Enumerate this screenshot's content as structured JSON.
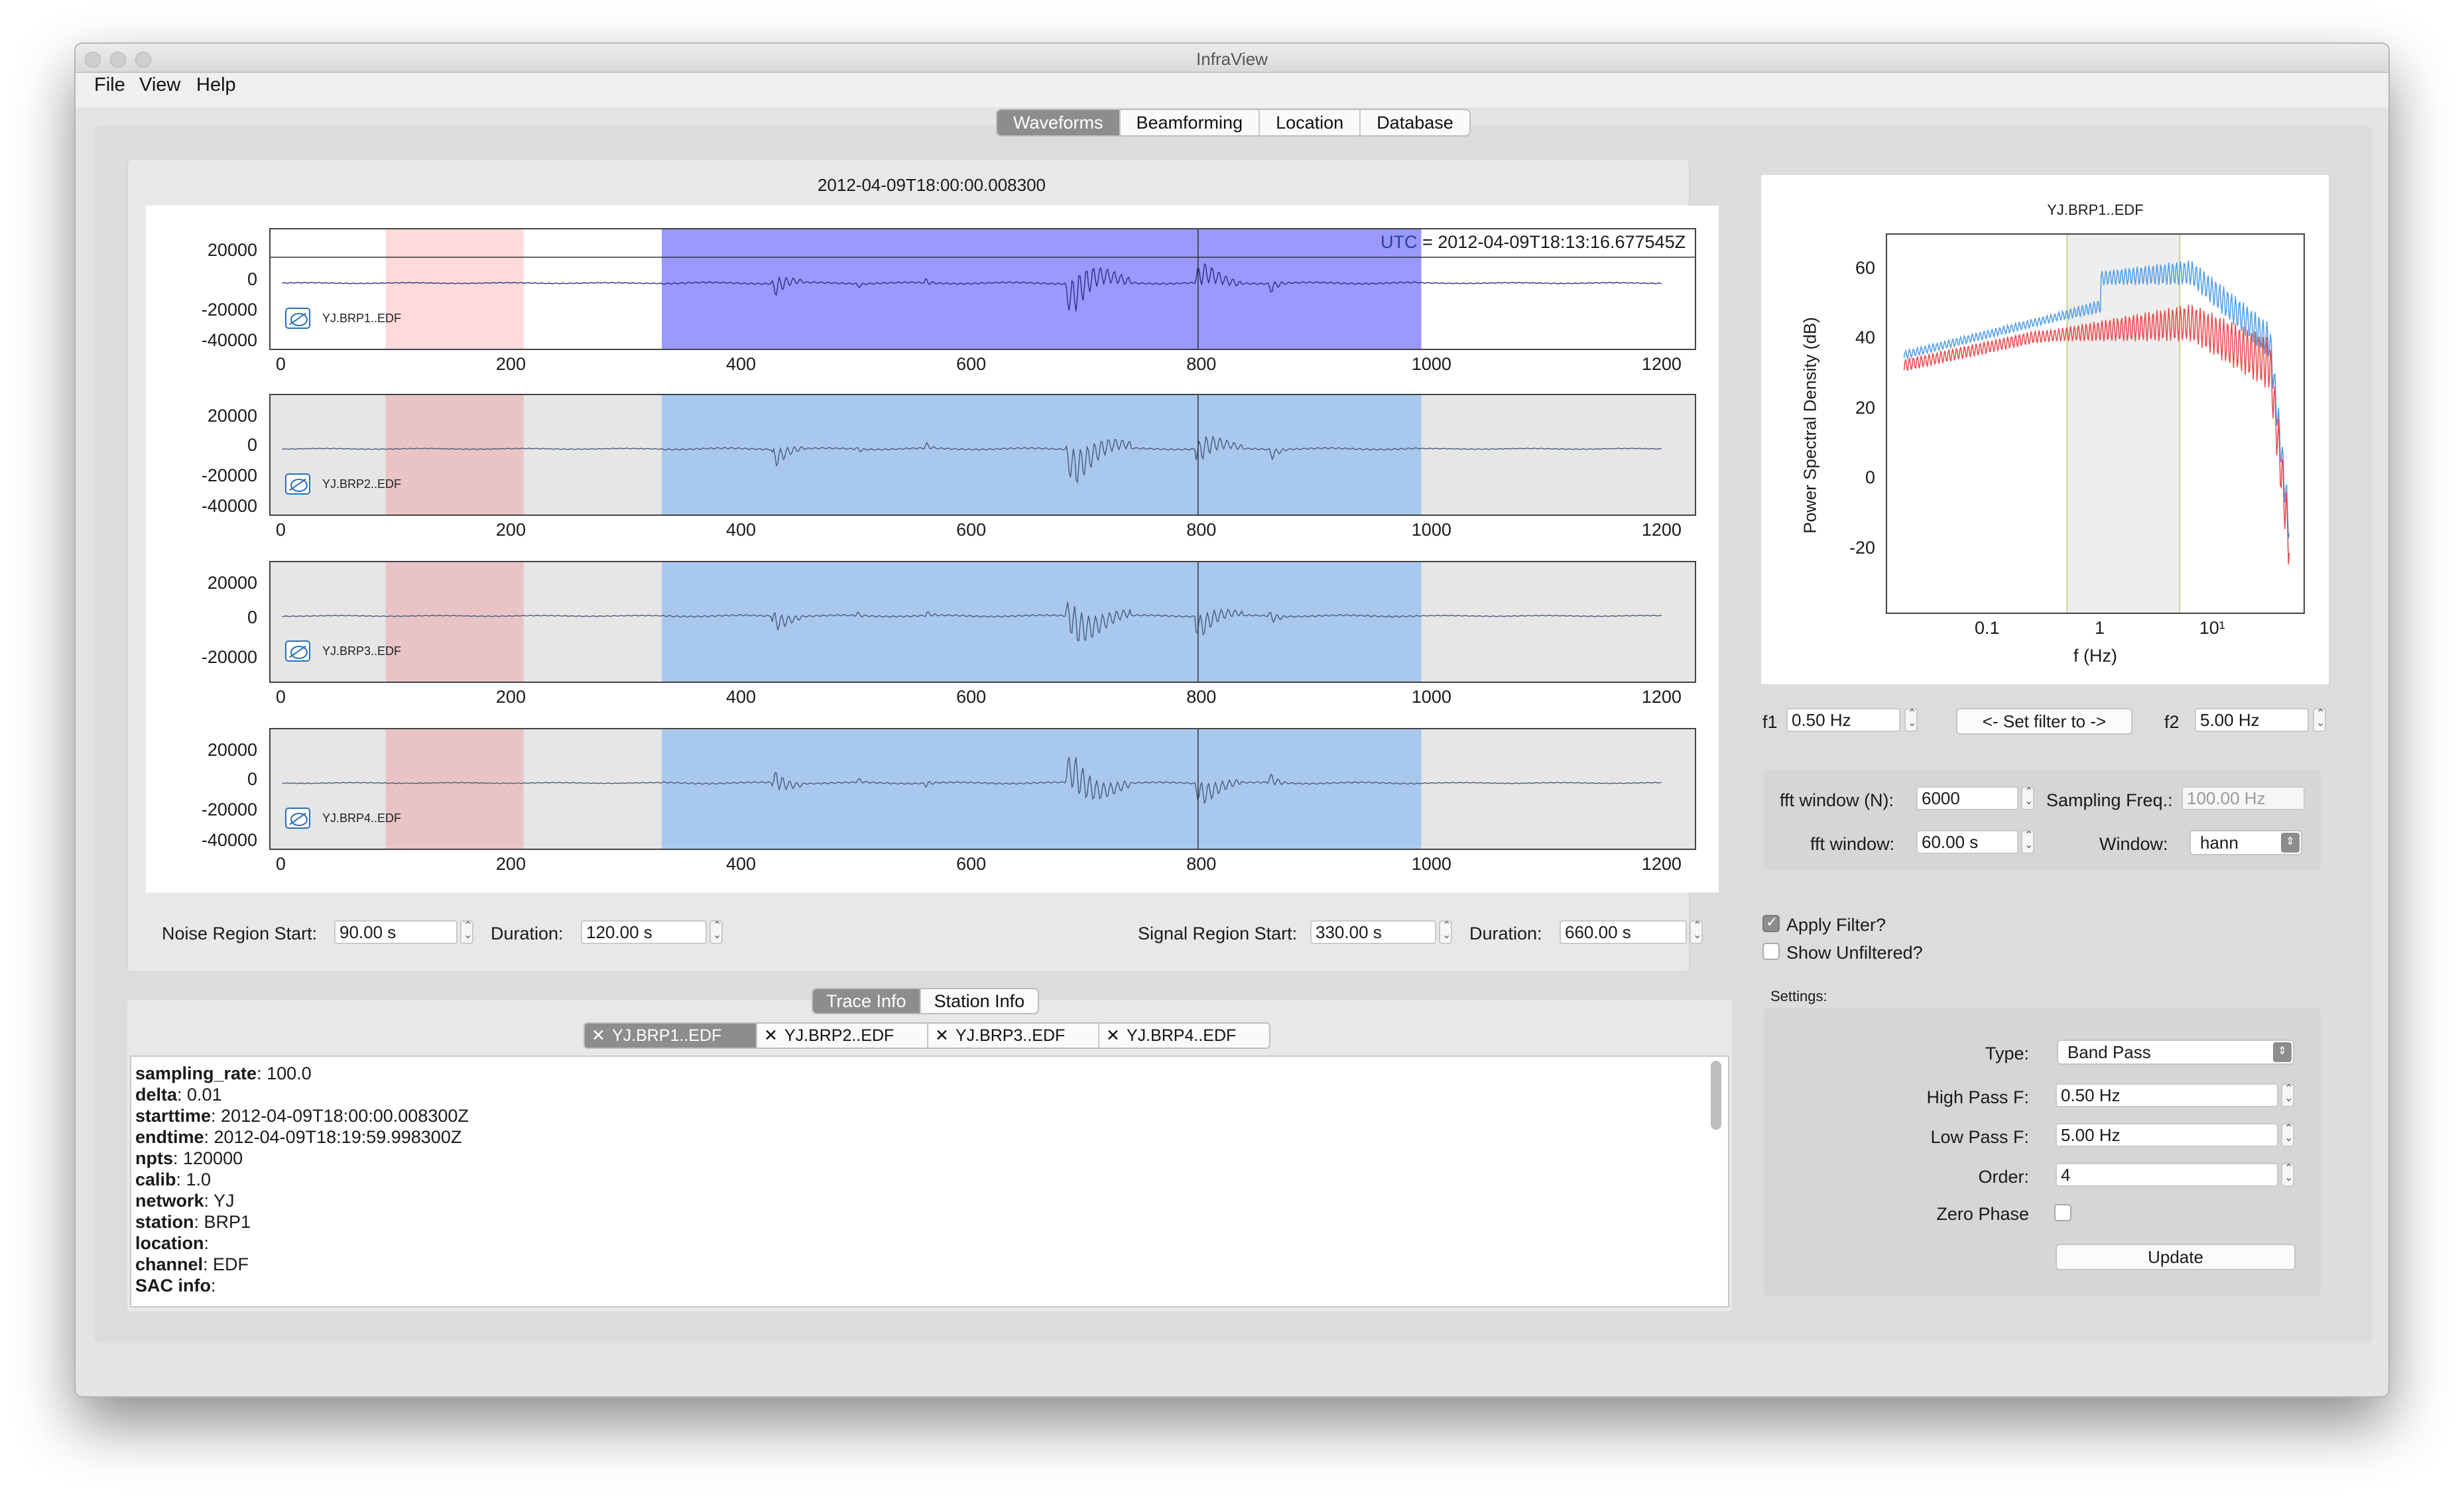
{
  "window": {
    "title": "InfraView"
  },
  "menu": {
    "file": "File",
    "view": "View",
    "help": "Help"
  },
  "main_tabs": [
    "Waveforms",
    "Beamforming",
    "Location",
    "Database"
  ],
  "waveform": {
    "title": "2012-04-09T18:00:00.008300",
    "utc_prefix": "UTC",
    "utc_value": "= 2012-04-09T18:13:16.677545Z",
    "x_ticks": [
      "0",
      "200",
      "400",
      "600",
      "800",
      "1000",
      "1200"
    ],
    "x_range": [
      -10,
      1230
    ],
    "noise_region": [
      90,
      210
    ],
    "signal_region": [
      330,
      990
    ],
    "cursor_time": 796,
    "traces": [
      {
        "label": "YJ.BRP1..EDF",
        "y_ticks": [
          "20000",
          "0",
          "-20000",
          "-40000"
        ]
      },
      {
        "label": "YJ.BRP2..EDF",
        "y_ticks": [
          "20000",
          "0",
          "-20000",
          "-40000"
        ]
      },
      {
        "label": "YJ.BRP3..EDF",
        "y_ticks": [
          "20000",
          "0",
          "-20000"
        ]
      },
      {
        "label": "YJ.BRP4..EDF",
        "y_ticks": [
          "20000",
          "0",
          "-20000",
          "-40000"
        ]
      }
    ],
    "colors": {
      "selected_signal": "#9999ff",
      "signal": "#a9c8ee",
      "noise": "#ffdada",
      "noise_dim": "#e8c4c6",
      "trace_bg": "#e6e6e6",
      "trace_line": "#4a5a78"
    }
  },
  "regions": {
    "noise_start_label": "Noise Region Start:",
    "noise_start_value": "90.00 s",
    "noise_duration_label": "Duration:",
    "noise_duration_value": "120.00 s",
    "signal_start_label": "Signal Region Start:",
    "signal_start_value": "330.00 s",
    "signal_duration_label": "Duration:",
    "signal_duration_value": "660.00 s"
  },
  "info_tabs": [
    "Trace Info",
    "Station Info"
  ],
  "trace_tabs": [
    "YJ.BRP1..EDF",
    "YJ.BRP2..EDF",
    "YJ.BRP3..EDF",
    "YJ.BRP4..EDF"
  ],
  "trace_info": [
    {
      "key": "sampling_rate",
      "value": ": 100.0"
    },
    {
      "key": "delta",
      "value": ": 0.01"
    },
    {
      "key": "starttime",
      "value": ": 2012-04-09T18:00:00.008300Z"
    },
    {
      "key": "endtime",
      "value": ": 2012-04-09T18:19:59.998300Z"
    },
    {
      "key": "npts",
      "value": ": 120000"
    },
    {
      "key": "calib",
      "value": ": 1.0"
    },
    {
      "key": "network",
      "value": ": YJ"
    },
    {
      "key": "station",
      "value": ": BRP1"
    },
    {
      "key": "location",
      "value": ":"
    },
    {
      "key": "channel",
      "value": ": EDF"
    },
    {
      "key": "SAC info",
      "value": ":"
    }
  ],
  "psd": {
    "title": "YJ.BRP1..EDF",
    "ylabel": "Power Spectral Density (dB)",
    "xlabel": "f (Hz)",
    "y_ticks": [
      "60",
      "40",
      "20",
      "0",
      "-20"
    ],
    "x_ticks": [
      "0.1",
      "1",
      "10¹"
    ],
    "ylim": [
      -38,
      70
    ],
    "xlim_log10": [
      -1.9,
      1.8
    ],
    "filter_band": [
      0.5,
      5.0
    ],
    "colors": {
      "signal": "#4d9be8",
      "noise": "#e8474a",
      "band": "#eeeeee"
    }
  },
  "filter_controls": {
    "f1_label": "f1",
    "f1_value": "0.50 Hz",
    "set_button": "<- Set filter to ->",
    "f2_label": "f2",
    "f2_value": "5.00 Hz"
  },
  "fft": {
    "window_n_label": "fft window (N):",
    "window_n_value": "6000",
    "sampling_label": "Sampling Freq.:",
    "sampling_value": "100.00 Hz",
    "window_s_label": "fft window:",
    "window_s_value": "60.00 s",
    "window_label": "Window:",
    "window_value": "hann"
  },
  "filter": {
    "apply_label": "Apply Filter?",
    "show_unfiltered_label": "Show Unfiltered?",
    "settings_label": "Settings:",
    "type_label": "Type:",
    "type_value": "Band Pass",
    "highpass_label": "High Pass F:",
    "highpass_value": "0.50 Hz",
    "lowpass_label": "Low Pass F:",
    "lowpass_value": "5.00 Hz",
    "order_label": "Order:",
    "order_value": "4",
    "zero_phase_label": "Zero Phase",
    "update_button": "Update"
  }
}
